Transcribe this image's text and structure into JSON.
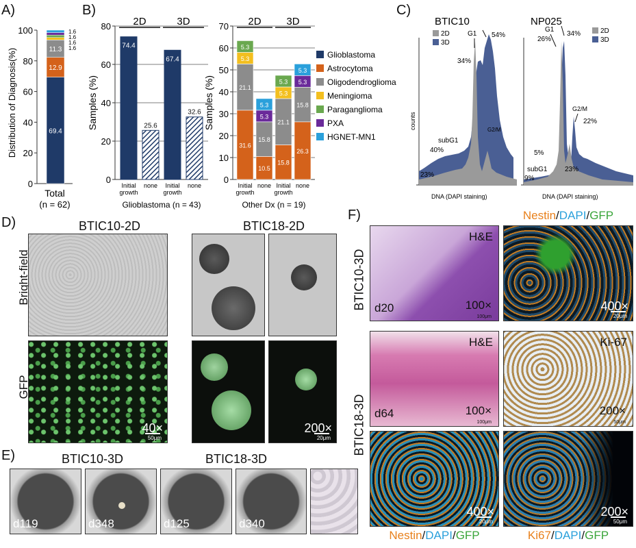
{
  "panels": {
    "a": "A)",
    "b": "B)",
    "c": "C)",
    "d": "D)",
    "e": "E)",
    "f": "F)"
  },
  "colors": {
    "glioblastoma": "#1f3a68",
    "astrocytoma": "#d4621b",
    "oligodendroglioma": "#8c8c8c",
    "meningioma": "#f3bf1f",
    "paraganglioma": "#6aa84f",
    "pxa": "#6a2a9a",
    "hgnet": "#2aa0db"
  },
  "chart_data": [
    {
      "type": "bar",
      "stacked": true,
      "panel": "A",
      "ylabel": "Distribution of Diagnosis(%)",
      "ylim": [
        0,
        100
      ],
      "yticks": [
        "0",
        "20",
        "40",
        "60",
        "80",
        "100"
      ],
      "categories": [
        "Total"
      ],
      "category_note": "(n = 62)",
      "series": [
        {
          "name": "Glioblastoma",
          "values": [
            69.4
          ],
          "label": "69.4"
        },
        {
          "name": "Astrocytoma",
          "values": [
            12.9
          ],
          "label": "12.9"
        },
        {
          "name": "Oligodendroglioma",
          "values": [
            11.3
          ],
          "label": "11.3"
        },
        {
          "name": "Meningioma",
          "values": [
            1.6
          ],
          "label": "1.6"
        },
        {
          "name": "Paraganglioma",
          "values": [
            1.6
          ],
          "label": "1.6"
        },
        {
          "name": "PXA",
          "values": [
            1.6
          ],
          "label": "1.6"
        },
        {
          "name": "HGNET-MN1",
          "values": [
            1.6
          ],
          "label": "1.6"
        }
      ]
    },
    {
      "type": "bar",
      "panel": "B-left",
      "ylabel": "Samples (%)",
      "ylim": [
        0,
        80
      ],
      "yticks": [
        "0",
        "20",
        "40",
        "60",
        "80"
      ],
      "groups": [
        "2D",
        "3D"
      ],
      "categories": [
        "Initial growth",
        "none",
        "Initial growth",
        "none"
      ],
      "values": [
        74.4,
        25.6,
        67.4,
        32.6
      ],
      "xlabel": "Glioblastoma (n = 43)"
    },
    {
      "type": "bar",
      "stacked": true,
      "panel": "B-right",
      "ylabel": "Samples (%)",
      "ylim": [
        0,
        70
      ],
      "yticks": [
        "0",
        "10",
        "20",
        "30",
        "40",
        "50",
        "60",
        "70"
      ],
      "groups": [
        "2D",
        "3D"
      ],
      "categories": [
        "Initial growth",
        "none",
        "Initial growth",
        "none"
      ],
      "xlabel": "Other Dx (n = 19)",
      "series": [
        {
          "name": "Astrocytoma",
          "values": [
            31.6,
            10.5,
            15.8,
            26.3
          ],
          "labels": [
            "31.6",
            "10.5",
            "15.8",
            "26.3"
          ]
        },
        {
          "name": "Oligodendroglioma",
          "values": [
            21.1,
            15.8,
            21.1,
            15.8
          ],
          "labels": [
            "21.1",
            "15.8",
            "21.1",
            "15.8"
          ]
        },
        {
          "name": "Meningioma",
          "values": [
            5.3,
            0,
            5.3,
            0
          ],
          "labels": [
            "5.3",
            "",
            "5.3",
            ""
          ]
        },
        {
          "name": "Paraganglioma",
          "values": [
            5.3,
            0,
            5.3,
            0
          ],
          "labels": [
            "5.3",
            "",
            "5.3",
            ""
          ]
        },
        {
          "name": "PXA",
          "values": [
            0,
            5.3,
            0,
            5.3
          ],
          "labels": [
            "",
            "5.3",
            "",
            "5.3"
          ]
        },
        {
          "name": "HGNET-MN1",
          "values": [
            0,
            5.3,
            0,
            5.3
          ],
          "labels": [
            "",
            "5.3",
            "",
            "5.3"
          ]
        }
      ]
    }
  ],
  "legend": [
    "Glioblastoma",
    "Astrocytoma",
    "Oligodendroglioma",
    "Meningioma",
    "Paraganglioma",
    "PXA",
    "HGNET-MN1"
  ],
  "panel_c": {
    "ylabel": "counts",
    "left": {
      "title": "BTIC10",
      "legend": [
        "2D",
        "3D"
      ],
      "xlabel": "DNA (DAPI staining)",
      "annot": {
        "g1": "G1",
        "p54": "54%",
        "p34": "34%",
        "g2m": "G2/M",
        "subg1": "subG1",
        "p40": "40%",
        "p23": "23%"
      }
    },
    "right": {
      "title": "NP025",
      "legend": [
        "2D",
        "3D"
      ],
      "xlabel": "DNA (DAPI staining)",
      "annot": {
        "g1": "G1",
        "p34": "34%",
        "p26": "26%",
        "g2m": "G2/M",
        "p22": "22%",
        "p5": "5%",
        "subg1": "subG1",
        "p9": "9%",
        "p23": "23%"
      }
    }
  },
  "panel_d": {
    "title_left": "BTIC10-2D",
    "title_right": "BTIC18-2D",
    "row1": "Bright-field",
    "row2": "GFP",
    "mag_left": "40×",
    "sb_left": "50μm",
    "mag_right": "200×",
    "sb_right": "20μm"
  },
  "panel_e": {
    "title_left": "BTIC10-3D",
    "title_right": "BTIC18-3D",
    "days": [
      "d119",
      "d348",
      "d125",
      "d340"
    ]
  },
  "panel_f": {
    "row1": "BTIC10-3D",
    "row2": "BTIC18-3D",
    "he": "H&E",
    "mag100": "100×",
    "mag400": "400×",
    "mag200": "200×",
    "d20": "d20",
    "d64": "d64",
    "ki67": "Ki-67",
    "sb100": "100μm",
    "sb20": "20μm",
    "sb50": "50μm",
    "stain_top": {
      "a": "Nestin",
      "b": "/",
      "c": "DAPI",
      "d": "/",
      "e": "GFP"
    },
    "stain_bl": {
      "a": "Nestin",
      "b": "/",
      "c": "DAPI",
      "d": "/",
      "e": "GFP"
    },
    "stain_br": {
      "a": "Ki67",
      "b": "/",
      "c": "DAPI",
      "d": "/",
      "e": "GFP"
    }
  }
}
